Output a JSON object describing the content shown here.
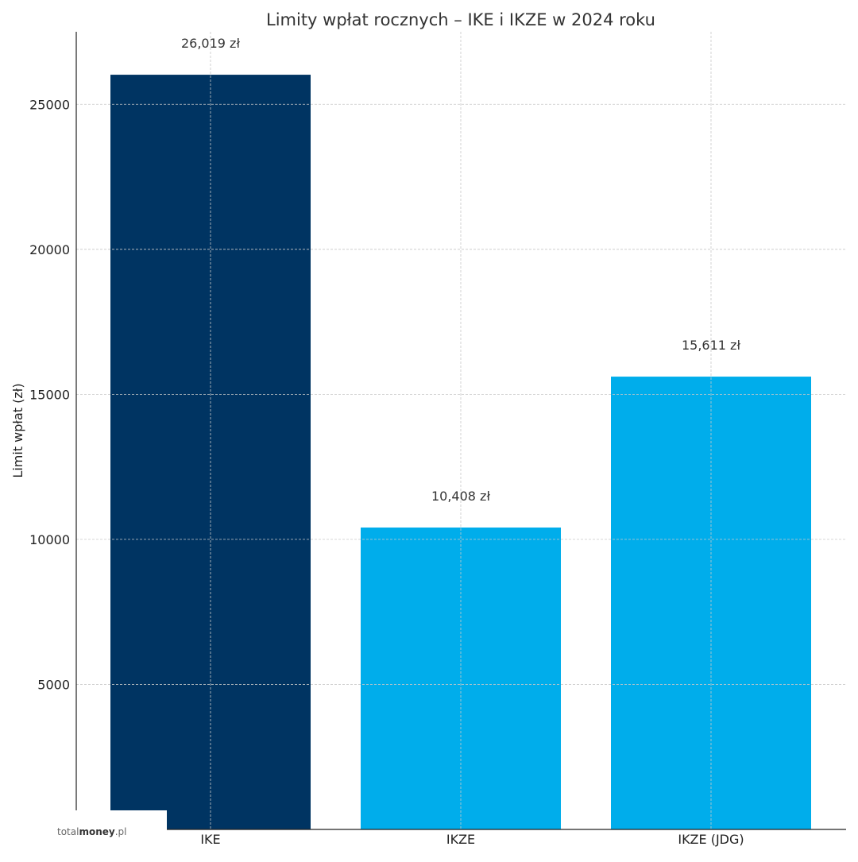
{
  "chart_data": {
    "type": "bar",
    "title": "Limity wpłat rocznych – IKE i IKZE w 2024 roku",
    "xlabel": "",
    "ylabel": "Limit wpłat (zł)",
    "categories": [
      "IKE",
      "IKZE",
      "IKZE (JDG)"
    ],
    "values": [
      26019,
      10408,
      15611
    ],
    "value_labels": [
      "26,019 zł",
      "10,408 zł",
      "15,611 zł"
    ],
    "colors": [
      "#003462",
      "#00adeb",
      "#00adeb"
    ],
    "ylim": [
      0,
      27500
    ],
    "yticks": [
      5000,
      10000,
      15000,
      20000,
      25000
    ],
    "grid": true,
    "legend": "none"
  },
  "watermark": {
    "light": "total",
    "bold": "money",
    "suffix": ".pl"
  }
}
